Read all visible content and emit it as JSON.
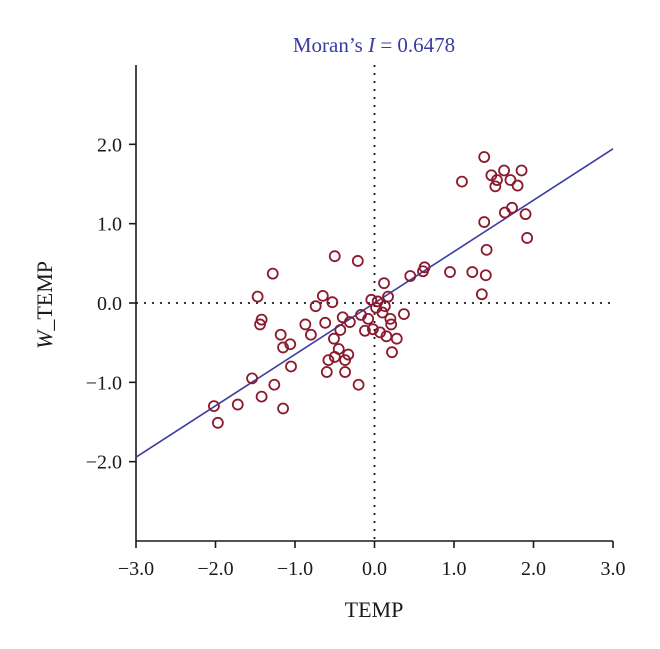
{
  "chart_data": {
    "type": "scatter",
    "title": {
      "prefix": "Moran’s ",
      "italic": "I",
      "suffix": " = 0.6478"
    },
    "xlabel": "TEMP",
    "ylabel": {
      "italic": "W",
      "rest": "_TEMP"
    },
    "xlim": [
      -3.0,
      3.0
    ],
    "ylim": [
      -3.0,
      3.0
    ],
    "x_ticks": [
      -3.0,
      -2.0,
      -1.0,
      0.0,
      1.0,
      2.0,
      3.0
    ],
    "x_tick_labels": [
      "−3.0",
      "−2.0",
      "−1.0",
      "0.0",
      "1.0",
      "2.0",
      "3.0"
    ],
    "y_ticks": [
      -2.0,
      -1.0,
      0.0,
      1.0,
      2.0
    ],
    "y_tick_labels": [
      "−2.0",
      "−1.0",
      "0.0",
      "1.0",
      "2.0"
    ],
    "grid": false,
    "reference_lines": {
      "x": 0.0,
      "y": 0.0,
      "style": "dotted"
    },
    "fit_line": {
      "slope": 0.6478,
      "intercept": 0.0
    },
    "colors": {
      "points": "#8b1a2e",
      "fit_line": "#3a3ca0",
      "title": "#3a3ca0",
      "axes": "#1a1a1a"
    },
    "points": [
      {
        "x": -2.02,
        "y": -1.3
      },
      {
        "x": -1.97,
        "y": -1.51
      },
      {
        "x": -1.72,
        "y": -1.28
      },
      {
        "x": -1.54,
        "y": -0.95
      },
      {
        "x": -1.42,
        "y": -1.18
      },
      {
        "x": -1.47,
        "y": 0.08
      },
      {
        "x": -1.44,
        "y": -0.27
      },
      {
        "x": -1.42,
        "y": -0.21
      },
      {
        "x": -1.28,
        "y": 0.37
      },
      {
        "x": -1.26,
        "y": -1.03
      },
      {
        "x": -1.18,
        "y": -0.4
      },
      {
        "x": -1.15,
        "y": -0.56
      },
      {
        "x": -1.15,
        "y": -1.33
      },
      {
        "x": -1.06,
        "y": -0.52
      },
      {
        "x": -1.05,
        "y": -0.8
      },
      {
        "x": -0.87,
        "y": -0.27
      },
      {
        "x": -0.8,
        "y": -0.4
      },
      {
        "x": -0.74,
        "y": -0.04
      },
      {
        "x": -0.65,
        "y": 0.09
      },
      {
        "x": -0.62,
        "y": -0.25
      },
      {
        "x": -0.6,
        "y": -0.87
      },
      {
        "x": -0.58,
        "y": -0.72
      },
      {
        "x": -0.53,
        "y": 0.01
      },
      {
        "x": -0.5,
        "y": 0.59
      },
      {
        "x": -0.51,
        "y": -0.45
      },
      {
        "x": -0.5,
        "y": -0.68
      },
      {
        "x": -0.45,
        "y": -0.58
      },
      {
        "x": -0.43,
        "y": -0.34
      },
      {
        "x": -0.4,
        "y": -0.18
      },
      {
        "x": -0.37,
        "y": -0.72
      },
      {
        "x": -0.37,
        "y": -0.87
      },
      {
        "x": -0.33,
        "y": -0.65
      },
      {
        "x": -0.31,
        "y": -0.24
      },
      {
        "x": -0.21,
        "y": 0.53
      },
      {
        "x": -0.2,
        "y": -1.03
      },
      {
        "x": -0.17,
        "y": -0.15
      },
      {
        "x": -0.12,
        "y": -0.35
      },
      {
        "x": -0.08,
        "y": -0.2
      },
      {
        "x": -0.04,
        "y": 0.04
      },
      {
        "x": -0.02,
        "y": -0.33
      },
      {
        "x": 0.02,
        "y": -0.06
      },
      {
        "x": 0.04,
        "y": 0.02
      },
      {
        "x": 0.07,
        "y": -0.37
      },
      {
        "x": 0.1,
        "y": -0.12
      },
      {
        "x": 0.12,
        "y": 0.25
      },
      {
        "x": 0.13,
        "y": -0.04
      },
      {
        "x": 0.15,
        "y": -0.42
      },
      {
        "x": 0.17,
        "y": 0.08
      },
      {
        "x": 0.2,
        "y": -0.2
      },
      {
        "x": 0.21,
        "y": -0.27
      },
      {
        "x": 0.22,
        "y": -0.62
      },
      {
        "x": 0.28,
        "y": -0.45
      },
      {
        "x": 0.37,
        "y": -0.14
      },
      {
        "x": 0.45,
        "y": 0.34
      },
      {
        "x": 0.61,
        "y": 0.4
      },
      {
        "x": 0.63,
        "y": 0.45
      },
      {
        "x": 0.95,
        "y": 0.39
      },
      {
        "x": 1.1,
        "y": 1.53
      },
      {
        "x": 1.23,
        "y": 0.39
      },
      {
        "x": 1.35,
        "y": 0.11
      },
      {
        "x": 1.38,
        "y": 1.02
      },
      {
        "x": 1.4,
        "y": 0.35
      },
      {
        "x": 1.41,
        "y": 0.67
      },
      {
        "x": 1.38,
        "y": 1.84
      },
      {
        "x": 1.47,
        "y": 1.61
      },
      {
        "x": 1.52,
        "y": 1.47
      },
      {
        "x": 1.54,
        "y": 1.55
      },
      {
        "x": 1.63,
        "y": 1.67
      },
      {
        "x": 1.64,
        "y": 1.14
      },
      {
        "x": 1.71,
        "y": 1.55
      },
      {
        "x": 1.73,
        "y": 1.2
      },
      {
        "x": 1.8,
        "y": 1.48
      },
      {
        "x": 1.85,
        "y": 1.67
      },
      {
        "x": 1.9,
        "y": 1.12
      },
      {
        "x": 1.92,
        "y": 0.82
      }
    ]
  }
}
